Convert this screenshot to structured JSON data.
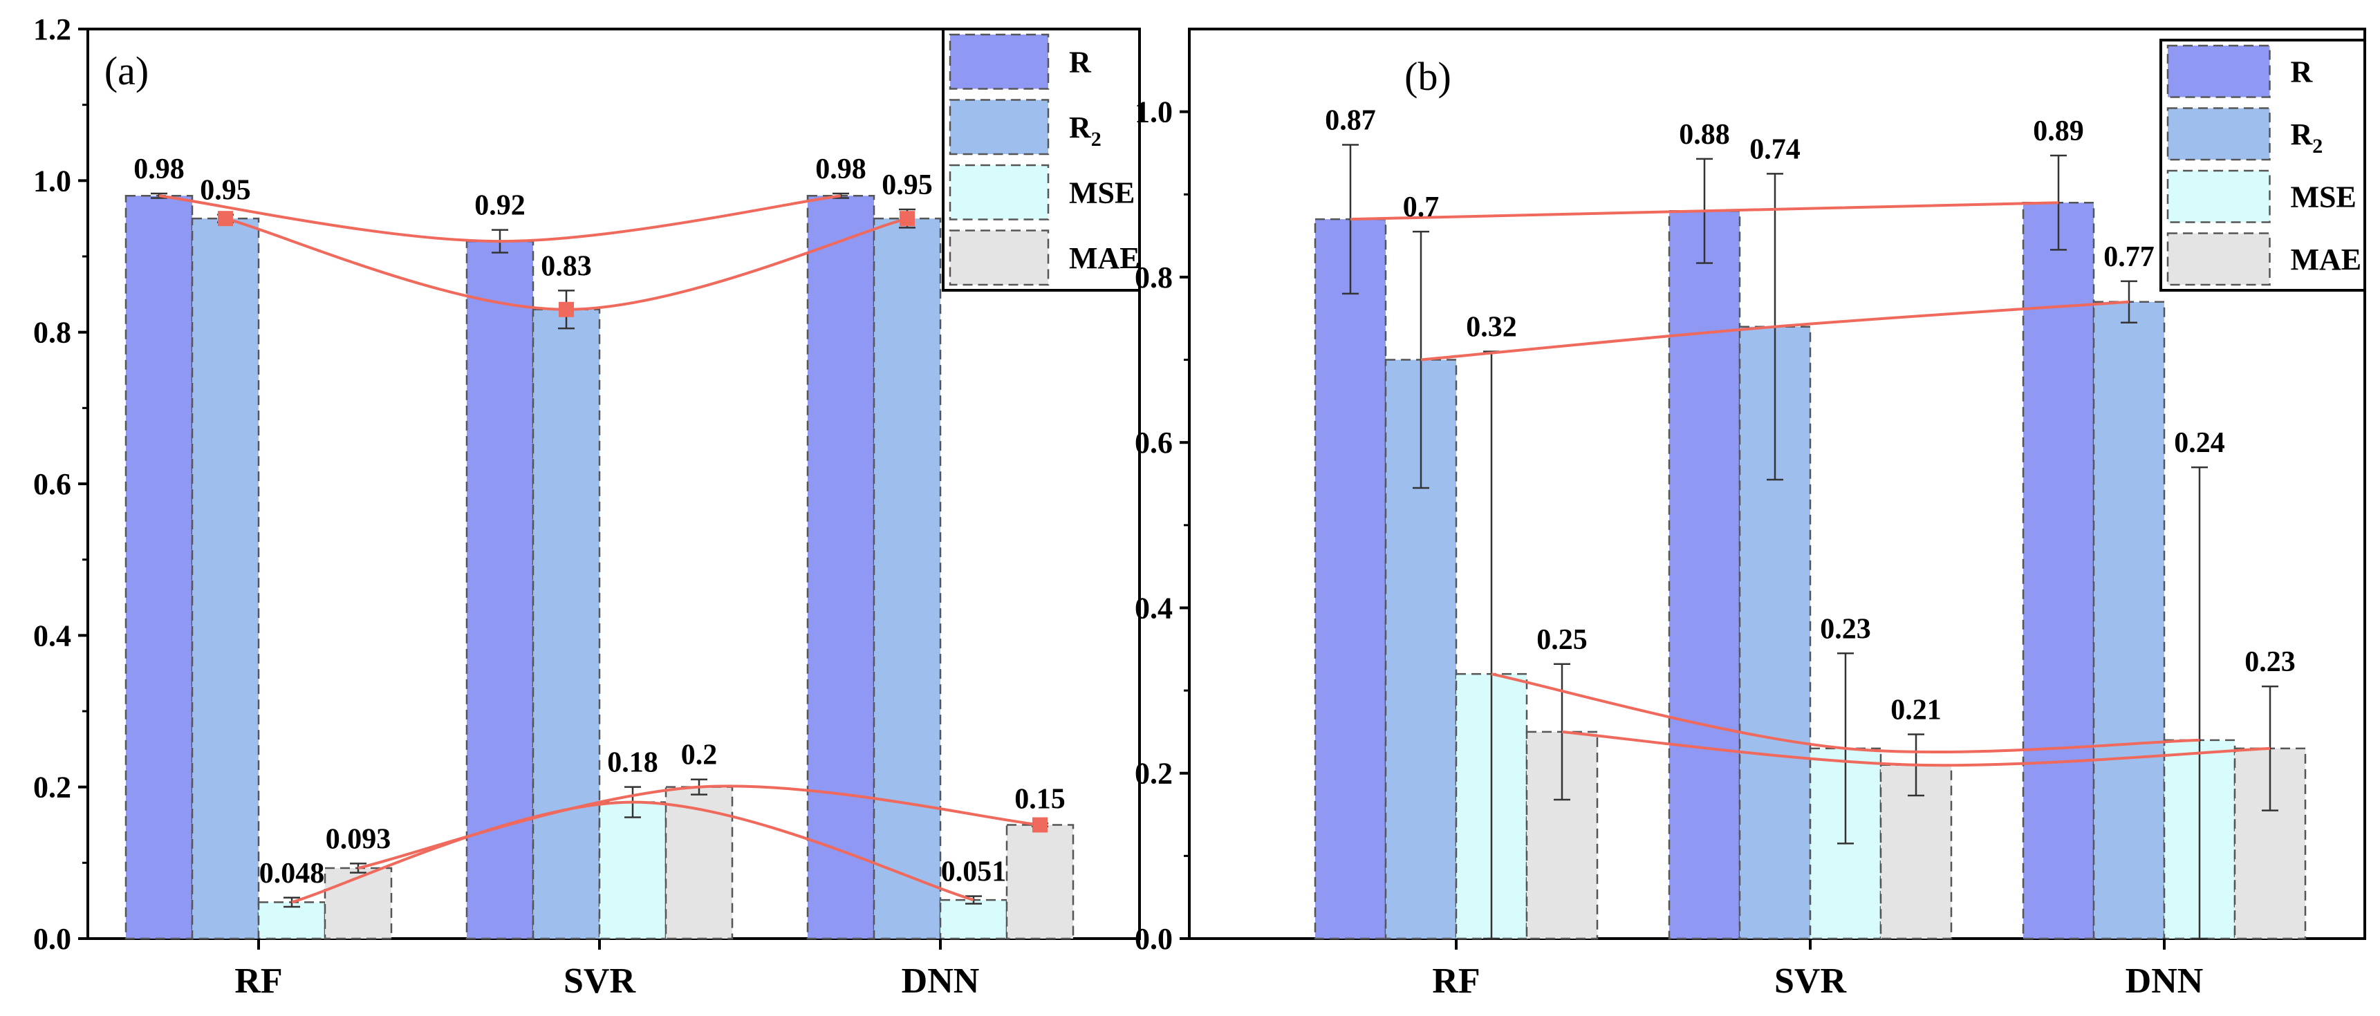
{
  "colors": {
    "R": "#8f98f3",
    "R2": "#9ebfee",
    "MSE": "#d8fbfc",
    "MAE": "#e4e4e4",
    "trend": "#ef6a5c"
  },
  "chart_data": [
    {
      "type": "bar",
      "panel_label": "(a)",
      "categories": [
        "RF",
        "SVR",
        "DNN"
      ],
      "ylim": [
        0,
        1.2
      ],
      "yticks": [
        "0.0",
        "0.2",
        "0.4",
        "0.6",
        "0.8",
        "1.0",
        "1.2"
      ],
      "legend": [
        "R",
        "R",
        "2",
        "MSE",
        "MAE"
      ],
      "series": [
        {
          "name": "R",
          "values": [
            0.98,
            0.92,
            0.98
          ],
          "errors": [
            0.003,
            0.015,
            0.003
          ],
          "labels": [
            "0.98",
            "0.92",
            "0.98"
          ]
        },
        {
          "name": "R2",
          "values": [
            0.95,
            0.83,
            0.95
          ],
          "errors": [
            0.005,
            0.025,
            0.012
          ],
          "labels": [
            "0.95",
            "0.83",
            "0.95"
          ]
        },
        {
          "name": "MSE",
          "values": [
            0.048,
            0.18,
            0.051
          ],
          "errors": [
            0.006,
            0.02,
            0.005
          ],
          "labels": [
            "0.048",
            "0.18",
            "0.051"
          ]
        },
        {
          "name": "MAE",
          "values": [
            0.093,
            0.2,
            0.15
          ],
          "errors": [
            0.006,
            0.01,
            0.002
          ],
          "labels": [
            "0.093",
            "0.2",
            "0.15"
          ]
        }
      ]
    },
    {
      "type": "bar",
      "panel_label": "(b)",
      "categories": [
        "RF",
        "SVR",
        "DNN"
      ],
      "ylim": [
        0,
        1.1
      ],
      "yticks": [
        "0.0",
        "0.2",
        "0.4",
        "0.6",
        "0.8",
        "1.0"
      ],
      "legend": [
        "R",
        "R",
        "2",
        "MSE",
        "MAE"
      ],
      "series": [
        {
          "name": "R",
          "values": [
            0.87,
            0.88,
            0.89
          ],
          "errors": [
            0.09,
            0.063,
            0.057
          ],
          "labels": [
            "0.87",
            "0.88",
            "0.89"
          ]
        },
        {
          "name": "R2",
          "values": [
            0.7,
            0.74,
            0.77
          ],
          "errors": [
            0.155,
            0.185,
            0.025
          ],
          "labels": [
            "0.7",
            "0.74",
            "0.77"
          ]
        },
        {
          "name": "MSE",
          "values": [
            0.32,
            0.23,
            0.24
          ],
          "errors": [
            0.39,
            0.115,
            0.33
          ],
          "labels": [
            "0.32",
            "0.23",
            "0.24"
          ]
        },
        {
          "name": "MAE",
          "values": [
            0.25,
            0.21,
            0.23
          ],
          "errors": [
            0.082,
            0.037,
            0.075
          ],
          "labels": [
            "0.25",
            "0.21",
            "0.23"
          ]
        }
      ]
    }
  ]
}
